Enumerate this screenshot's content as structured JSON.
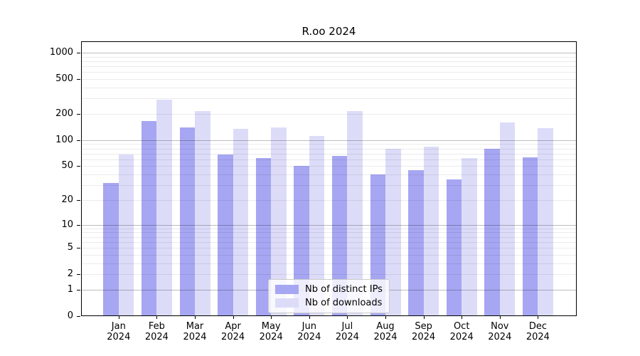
{
  "chart_data": {
    "type": "bar",
    "title": "R.oo 2024",
    "categories": [
      "Jan 2024",
      "Feb 2024",
      "Mar 2024",
      "Apr 2024",
      "May 2024",
      "Jun 2024",
      "Jul 2024",
      "Aug 2024",
      "Sep 2024",
      "Oct 2024",
      "Nov 2024",
      "Dec 2024"
    ],
    "series": [
      {
        "name": "Nb of distinct IPs",
        "color": "#a6a6f2",
        "values": [
          32,
          165,
          139,
          68,
          62,
          50,
          66,
          40,
          45,
          35,
          79,
          63
        ]
      },
      {
        "name": "Nb of downloads",
        "color": "#dcdcf9",
        "values": [
          68,
          290,
          215,
          135,
          140,
          112,
          215,
          79,
          84,
          62,
          159,
          137
        ]
      }
    ],
    "yscale": "log1p",
    "yticks": [
      0,
      1,
      2,
      5,
      10,
      20,
      50,
      100,
      200,
      500,
      1000
    ],
    "ylim": [
      0,
      1350
    ],
    "grid": "major decades dark, log minors light, drawn over bars",
    "legend_position": "lower center"
  }
}
